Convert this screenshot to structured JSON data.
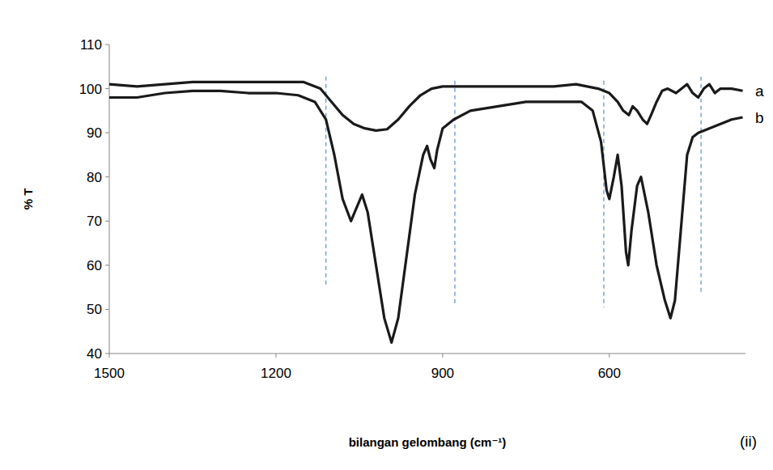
{
  "chart_data": {
    "type": "line",
    "x_label": "bilangan gelombang (cm⁻¹)",
    "y_label": "% T",
    "panel": "(ii)",
    "xlim": [
      1500,
      355
    ],
    "xticks": [
      1500,
      1200,
      900,
      600
    ],
    "ylim": [
      40,
      110
    ],
    "yticks": [
      40,
      50,
      60,
      70,
      80,
      90,
      100,
      110
    ],
    "grid": false,
    "vlines": [
      {
        "x": 1110,
        "y": [
          102.7,
          55
        ]
      },
      {
        "x": 878,
        "y": [
          101.8,
          51.4
        ]
      },
      {
        "x": 610,
        "y": [
          101.8,
          50.5
        ]
      },
      {
        "x": 435,
        "y": [
          102.7,
          53.3
        ]
      }
    ],
    "series": [
      {
        "name": "a",
        "color": "#1a1a1a",
        "x": [
          1500,
          1450,
          1400,
          1350,
          1300,
          1200,
          1150,
          1120,
          1100,
          1080,
          1060,
          1040,
          1020,
          1000,
          980,
          960,
          940,
          920,
          900,
          800,
          700,
          660,
          640,
          620,
          600,
          585,
          575,
          565,
          558,
          550,
          540,
          532,
          525,
          515,
          505,
          495,
          480,
          470,
          460,
          450,
          440,
          430,
          420,
          410,
          400,
          380,
          360
        ],
        "values": [
          101,
          100.5,
          101,
          101.5,
          101.5,
          101.5,
          101.5,
          100,
          97,
          94,
          92,
          91,
          90.5,
          90.8,
          93,
          96,
          98.5,
          100,
          100.5,
          100.5,
          100.5,
          101,
          100.5,
          100,
          99,
          97,
          95,
          94,
          96,
          95,
          93,
          92,
          94,
          97,
          99.5,
          100,
          99,
          100,
          101,
          99,
          98,
          100,
          101,
          99,
          100,
          100,
          99.5
        ]
      },
      {
        "name": "b",
        "color": "#1a1a1a",
        "x": [
          1500,
          1450,
          1400,
          1350,
          1300,
          1250,
          1200,
          1160,
          1130,
          1110,
          1095,
          1080,
          1065,
          1055,
          1045,
          1035,
          1020,
          1005,
          992,
          980,
          965,
          950,
          935,
          928,
          922,
          915,
          910,
          900,
          880,
          850,
          800,
          750,
          700,
          650,
          630,
          615,
          605,
          600,
          592,
          585,
          578,
          570,
          566,
          560,
          550,
          543,
          530,
          515,
          500,
          490,
          482,
          470,
          460,
          450,
          440,
          420,
          400,
          380,
          360
        ],
        "values": [
          98,
          98,
          99,
          99.5,
          99.5,
          99,
          99,
          98.5,
          97,
          93,
          85,
          75,
          70,
          73,
          76,
          72,
          60,
          48,
          42.5,
          48,
          62,
          76,
          85,
          87,
          84,
          82,
          86,
          91,
          93,
          95,
          96,
          97,
          97,
          97,
          95,
          88,
          77,
          75,
          80,
          85,
          78,
          63,
          60,
          68,
          78,
          80,
          72,
          60,
          52,
          48,
          52,
          70,
          85,
          89,
          90,
          91,
          92,
          93,
          93.5
        ]
      }
    ]
  }
}
